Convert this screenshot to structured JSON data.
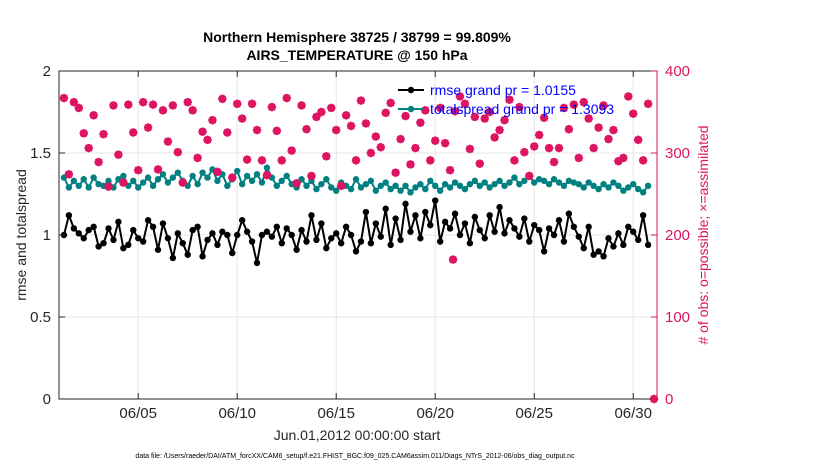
{
  "chart_data": {
    "type": "line",
    "title_line1": "Northern Hemisphere 38725 / 38799 = 99.809%",
    "title_line2": "AIRS_TEMPERATURE @ 150 hPa",
    "xlabel": "Jun.01,2012 00:00:00 start",
    "ylabel_left": "rmse and totalspread",
    "ylabel_right": "# of obs: o=possible; ×=assimilated",
    "xlim": [
      1.0,
      31.2
    ],
    "ylim_left": [
      0,
      2
    ],
    "ylim_right": [
      0,
      400
    ],
    "x_ticks": [
      {
        "value": 5,
        "label": "06/05"
      },
      {
        "value": 10,
        "label": "06/10"
      },
      {
        "value": 15,
        "label": "06/15"
      },
      {
        "value": 20,
        "label": "06/20"
      },
      {
        "value": 25,
        "label": "06/25"
      },
      {
        "value": 30,
        "label": "06/30"
      }
    ],
    "y_ticks_left": [
      {
        "value": 0,
        "label": "0"
      },
      {
        "value": 0.5,
        "label": "0.5"
      },
      {
        "value": 1,
        "label": "1"
      },
      {
        "value": 1.5,
        "label": "1.5"
      },
      {
        "value": 2,
        "label": "2"
      }
    ],
    "y_ticks_right": [
      {
        "value": 0,
        "label": "0"
      },
      {
        "value": 100,
        "label": "100"
      },
      {
        "value": 200,
        "label": "200"
      },
      {
        "value": 300,
        "label": "300"
      },
      {
        "value": 400,
        "label": "400"
      }
    ],
    "x_start": 1.25,
    "x_step": 0.25,
    "series": [
      {
        "name": "rmse grand pr = 1.0155",
        "color": "#000000",
        "axis": "left",
        "values": [
          1.0,
          1.12,
          1.04,
          1.01,
          0.98,
          1.03,
          1.05,
          0.93,
          0.95,
          1.04,
          0.97,
          1.08,
          0.92,
          0.94,
          1.03,
          0.98,
          0.96,
          1.09,
          1.05,
          0.91,
          1.07,
          0.98,
          0.86,
          1.01,
          0.95,
          0.88,
          1.03,
          1.05,
          0.87,
          0.97,
          1.01,
          0.94,
          1.02,
          1.0,
          0.89,
          1.0,
          1.09,
          1.02,
          0.96,
          0.83,
          1.0,
          1.02,
          0.99,
          1.05,
          0.95,
          1.04,
          1.0,
          0.91,
          1.03,
          0.96,
          1.12,
          0.97,
          1.07,
          0.92,
          0.98,
          1.01,
          0.95,
          1.05,
          1.0,
          0.9,
          0.96,
          1.14,
          0.95,
          1.07,
          0.99,
          1.16,
          0.94,
          1.1,
          0.97,
          1.19,
          1.02,
          1.12,
          0.98,
          1.14,
          1.06,
          1.21,
          0.96,
          1.08,
          1.04,
          1.13,
          1.0,
          1.07,
          0.95,
          1.11,
          1.03,
          0.98,
          1.12,
          1.02,
          1.17,
          1.01,
          1.09,
          1.04,
          0.99,
          1.1,
          0.96,
          1.06,
          1.03,
          0.9,
          1.04,
          1.0,
          1.09,
          0.96,
          1.13,
          1.05,
          0.99,
          0.92,
          1.05,
          0.88,
          0.9,
          0.87,
          0.98,
          0.93,
          1.01,
          0.94,
          1.05,
          1.02,
          0.97,
          1.12,
          0.94
        ]
      },
      {
        "name": "totalspread grand pr = 1.3093",
        "color": "#008080",
        "axis": "left",
        "values": [
          1.35,
          1.29,
          1.33,
          1.3,
          1.34,
          1.29,
          1.35,
          1.31,
          1.3,
          1.33,
          1.29,
          1.34,
          1.36,
          1.3,
          1.33,
          1.29,
          1.32,
          1.35,
          1.3,
          1.34,
          1.37,
          1.32,
          1.35,
          1.38,
          1.33,
          1.3,
          1.36,
          1.31,
          1.38,
          1.35,
          1.4,
          1.33,
          1.37,
          1.3,
          1.34,
          1.39,
          1.31,
          1.36,
          1.33,
          1.37,
          1.32,
          1.41,
          1.35,
          1.3,
          1.33,
          1.36,
          1.31,
          1.29,
          1.34,
          1.3,
          1.33,
          1.28,
          1.31,
          1.34,
          1.29,
          1.27,
          1.32,
          1.3,
          1.28,
          1.34,
          1.29,
          1.31,
          1.33,
          1.27,
          1.3,
          1.32,
          1.28,
          1.3,
          1.27,
          1.3,
          1.26,
          1.29,
          1.31,
          1.28,
          1.33,
          1.3,
          1.27,
          1.31,
          1.29,
          1.32,
          1.3,
          1.28,
          1.31,
          1.33,
          1.3,
          1.32,
          1.29,
          1.31,
          1.33,
          1.3,
          1.32,
          1.35,
          1.31,
          1.33,
          1.36,
          1.32,
          1.34,
          1.33,
          1.31,
          1.34,
          1.32,
          1.3,
          1.33,
          1.32,
          1.31,
          1.29,
          1.32,
          1.3,
          1.28,
          1.31,
          1.29,
          1.32,
          1.3,
          1.27,
          1.29,
          1.31,
          1.28,
          1.26,
          1.3
        ]
      },
      {
        "name": "obs possible",
        "color": "#dc1462",
        "axis": "right",
        "values": [
          367,
          274,
          362,
          355,
          324,
          306,
          346,
          289,
          323,
          259,
          358,
          298,
          264,
          359,
          325,
          279,
          362,
          331,
          359,
          280,
          352,
          314,
          358,
          301,
          264,
          362,
          352,
          294,
          326,
          316,
          340,
          277,
          366,
          325,
          270,
          360,
          342,
          292,
          360,
          328,
          291,
          273,
          356,
          327,
          291,
          367,
          303,
          263,
          358,
          329,
          272,
          344,
          350,
          296,
          355,
          328,
          260,
          346,
          333,
          291,
          364,
          336,
          300,
          320,
          307,
          349,
          361,
          276,
          317,
          345,
          286,
          306,
          337,
          352,
          291,
          315,
          355,
          312,
          279,
          351,
          369,
          360,
          305,
          344,
          287,
          342,
          350,
          319,
          328,
          340,
          365,
          291,
          356,
          301,
          272,
          308,
          322,
          343,
          306,
          289,
          306,
          355,
          329,
          359,
          294,
          362,
          342,
          306,
          331,
          358,
          317,
          328,
          290,
          294,
          369,
          348,
          316,
          291,
          360
        ]
      },
      {
        "name": "obs assimilated",
        "color": "#dc1462",
        "axis": "right",
        "values": [
          367,
          274,
          362,
          355,
          324,
          306,
          346,
          289,
          323,
          259,
          358,
          298,
          264,
          359,
          325,
          279,
          362,
          331,
          359,
          280,
          352,
          314,
          358,
          301,
          264,
          362,
          352,
          294,
          326,
          316,
          340,
          277,
          366,
          325,
          270,
          360,
          342,
          292,
          360,
          328,
          291,
          273,
          356,
          327,
          291,
          367,
          303,
          263,
          358,
          329,
          272,
          344,
          350,
          296,
          355,
          328,
          260,
          346,
          333,
          291,
          364,
          336,
          300,
          320,
          307,
          349,
          361,
          276,
          317,
          345,
          286,
          306,
          337,
          352,
          291,
          315,
          355,
          312,
          279,
          351,
          369,
          360,
          305,
          344,
          287,
          342,
          350,
          319,
          328,
          340,
          365,
          291,
          356,
          301,
          272,
          308,
          322,
          343,
          306,
          289,
          306,
          355,
          329,
          359,
          294,
          362,
          342,
          306,
          331,
          358,
          317,
          328,
          290,
          294,
          369,
          348,
          316,
          291,
          360
        ]
      }
    ],
    "extra_points": [
      {
        "x": 20.9,
        "y": 170,
        "axis": "right",
        "series": "obs possible"
      },
      {
        "x": 31.05,
        "y": 0,
        "axis": "right",
        "series": "obs possible"
      }
    ],
    "legend": [
      {
        "label": "rmse grand pr = 1.0155",
        "color": "#000000",
        "text_color": "#0000ff"
      },
      {
        "label": "totalspread grand pr = 1.3093",
        "color": "#008080",
        "text_color": "#0000ff"
      }
    ],
    "legend_position": "top-right",
    "grid": true
  },
  "footer": "data file: /Users/raeder/DAI/ATM_forcXX/CAM6_setup/f.e21.FHIST_BGC.f09_025.CAM6assim.011/Diags_NTrS_2012-06/obs_diag_output.nc"
}
